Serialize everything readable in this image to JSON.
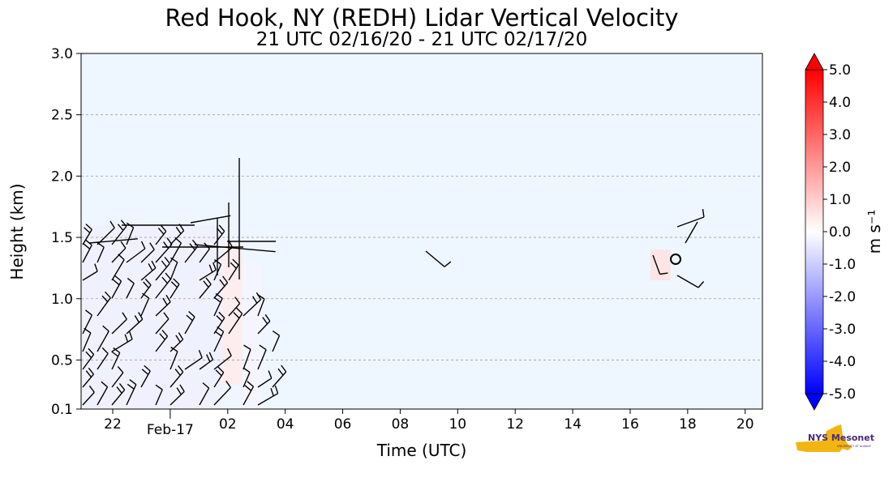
{
  "title": "Red Hook, NY (REDH) Lidar Vertical Velocity",
  "subtitle": "21 UTC 02/16/20 - 21 UTC 02/17/20",
  "chart_data": {
    "type": "heatmap",
    "xlabel": "Time (UTC)",
    "ylabel": "Height (km)",
    "xlim": [
      20.9,
      44.6
    ],
    "ylim": [
      0.1,
      3.0
    ],
    "x_ticks": [
      {
        "value": 22,
        "label": "22"
      },
      {
        "value": 26,
        "label": "02"
      },
      {
        "value": 28,
        "label": "04"
      },
      {
        "value": 30,
        "label": "06"
      },
      {
        "value": 32,
        "label": "08"
      },
      {
        "value": 34,
        "label": "10"
      },
      {
        "value": 36,
        "label": "12"
      },
      {
        "value": 38,
        "label": "14"
      },
      {
        "value": 40,
        "label": "16"
      },
      {
        "value": 42,
        "label": "18"
      },
      {
        "value": 44,
        "label": "20"
      }
    ],
    "date_tick": {
      "value": 24,
      "label": "Feb-17"
    },
    "y_ticks": [
      {
        "value": 0.1,
        "label": "0.1"
      },
      {
        "value": 0.5,
        "label": "0.5"
      },
      {
        "value": 1.0,
        "label": "1.0"
      },
      {
        "value": 1.5,
        "label": "1.5"
      },
      {
        "value": 2.0,
        "label": "2.0"
      },
      {
        "value": 2.5,
        "label": "2.5"
      },
      {
        "value": 3.0,
        "label": "3.0"
      }
    ],
    "grid": "horizontal dashed",
    "colorbar": {
      "label": "m s⁻¹",
      "min": -5.0,
      "max": 5.0,
      "ticks": [
        "5.0",
        "4.0",
        "3.0",
        "2.0",
        "1.0",
        "0.0",
        "-1.0",
        "-2.0",
        "-3.0",
        "-4.0",
        "-5.0"
      ],
      "low_color": "#0000ff",
      "mid_color": "#ffffff",
      "high_color": "#ff0000"
    },
    "background_color": "#eef6ff",
    "data_regions": [
      {
        "x_start": 20.9,
        "x_end": 25.8,
        "y_start": 0.1,
        "y_end": 1.6,
        "velocity": -0.3
      },
      {
        "x_start": 25.8,
        "x_end": 26.5,
        "y_start": 0.3,
        "y_end": 1.45,
        "velocity": 0.4
      },
      {
        "x_start": 26.5,
        "x_end": 27.2,
        "y_start": 0.1,
        "y_end": 1.3,
        "velocity": -0.2
      },
      {
        "x_start": 32.9,
        "x_end": 33.0,
        "y_start": 1.35,
        "y_end": 1.4,
        "velocity": -0.3
      },
      {
        "x_start": 40.7,
        "x_end": 41.4,
        "y_start": 1.15,
        "y_end": 1.4,
        "velocity": 0.6
      }
    ]
  },
  "logo": {
    "text": "NYS Mesonet",
    "subtext": "UNIVERSITY AT ALBANY"
  }
}
